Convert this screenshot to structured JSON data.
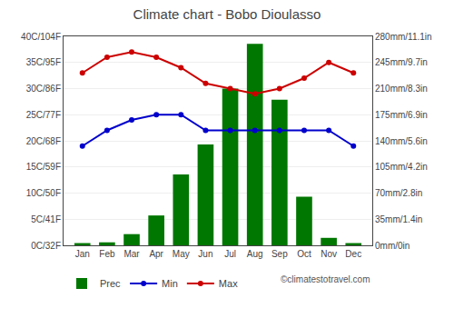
{
  "chart_data": {
    "type": "bar",
    "title": "Climate chart - Bobo Dioulasso",
    "categories": [
      "Jan",
      "Feb",
      "Mar",
      "Apr",
      "May",
      "Jun",
      "Jul",
      "Aug",
      "Sep",
      "Oct",
      "Nov",
      "Dec"
    ],
    "series": [
      {
        "name": "Prec",
        "type": "bar",
        "axis": "y2",
        "color": "#007700",
        "values": [
          3,
          4,
          15,
          40,
          95,
          135,
          210,
          270,
          195,
          65,
          10,
          3
        ]
      },
      {
        "name": "Min",
        "type": "line",
        "color": "#0000CC",
        "marker": "circle",
        "line_style": "solid",
        "values": [
          19,
          22,
          24,
          25,
          25,
          22,
          22,
          22,
          22,
          22,
          22,
          19
        ]
      },
      {
        "name": "Max",
        "type": "line",
        "color": "#CC0000",
        "marker": "circle",
        "line_style": "solid",
        "values": [
          33,
          36,
          37,
          36,
          34,
          31,
          30,
          29,
          30,
          32,
          35,
          33
        ]
      }
    ],
    "ylim": [
      0,
      40
    ],
    "yticks": [
      {
        "value": 0,
        "label": "0C/32F"
      },
      {
        "value": 5,
        "label": "5C/41F"
      },
      {
        "value": 10,
        "label": "10C/50F"
      },
      {
        "value": 15,
        "label": "15C/59F"
      },
      {
        "value": 20,
        "label": "20C/68F"
      },
      {
        "value": 25,
        "label": "25C/77F"
      },
      {
        "value": 30,
        "label": "30C/86F"
      },
      {
        "value": 35,
        "label": "35C/95F"
      },
      {
        "value": 40,
        "label": "40C/104F"
      }
    ],
    "y2lim": [
      0,
      280
    ],
    "y2ticks": [
      {
        "value": 0,
        "label": "0mm/0in"
      },
      {
        "value": 35,
        "label": "35mm/1.4in"
      },
      {
        "value": 70,
        "label": "70mm/2.8in"
      },
      {
        "value": 105,
        "label": "105mm/4.2in"
      },
      {
        "value": 140,
        "label": "140mm/5.6in"
      },
      {
        "value": 175,
        "label": "175mm/6.9in"
      },
      {
        "value": 210,
        "label": "210mm/8.3in"
      },
      {
        "value": 245,
        "label": "245mm/9.7in"
      },
      {
        "value": 280,
        "label": "280mm/11.1in"
      }
    ],
    "grid": true,
    "legend": "bottom",
    "annotations": [
      "©climatestotravel.com"
    ]
  }
}
